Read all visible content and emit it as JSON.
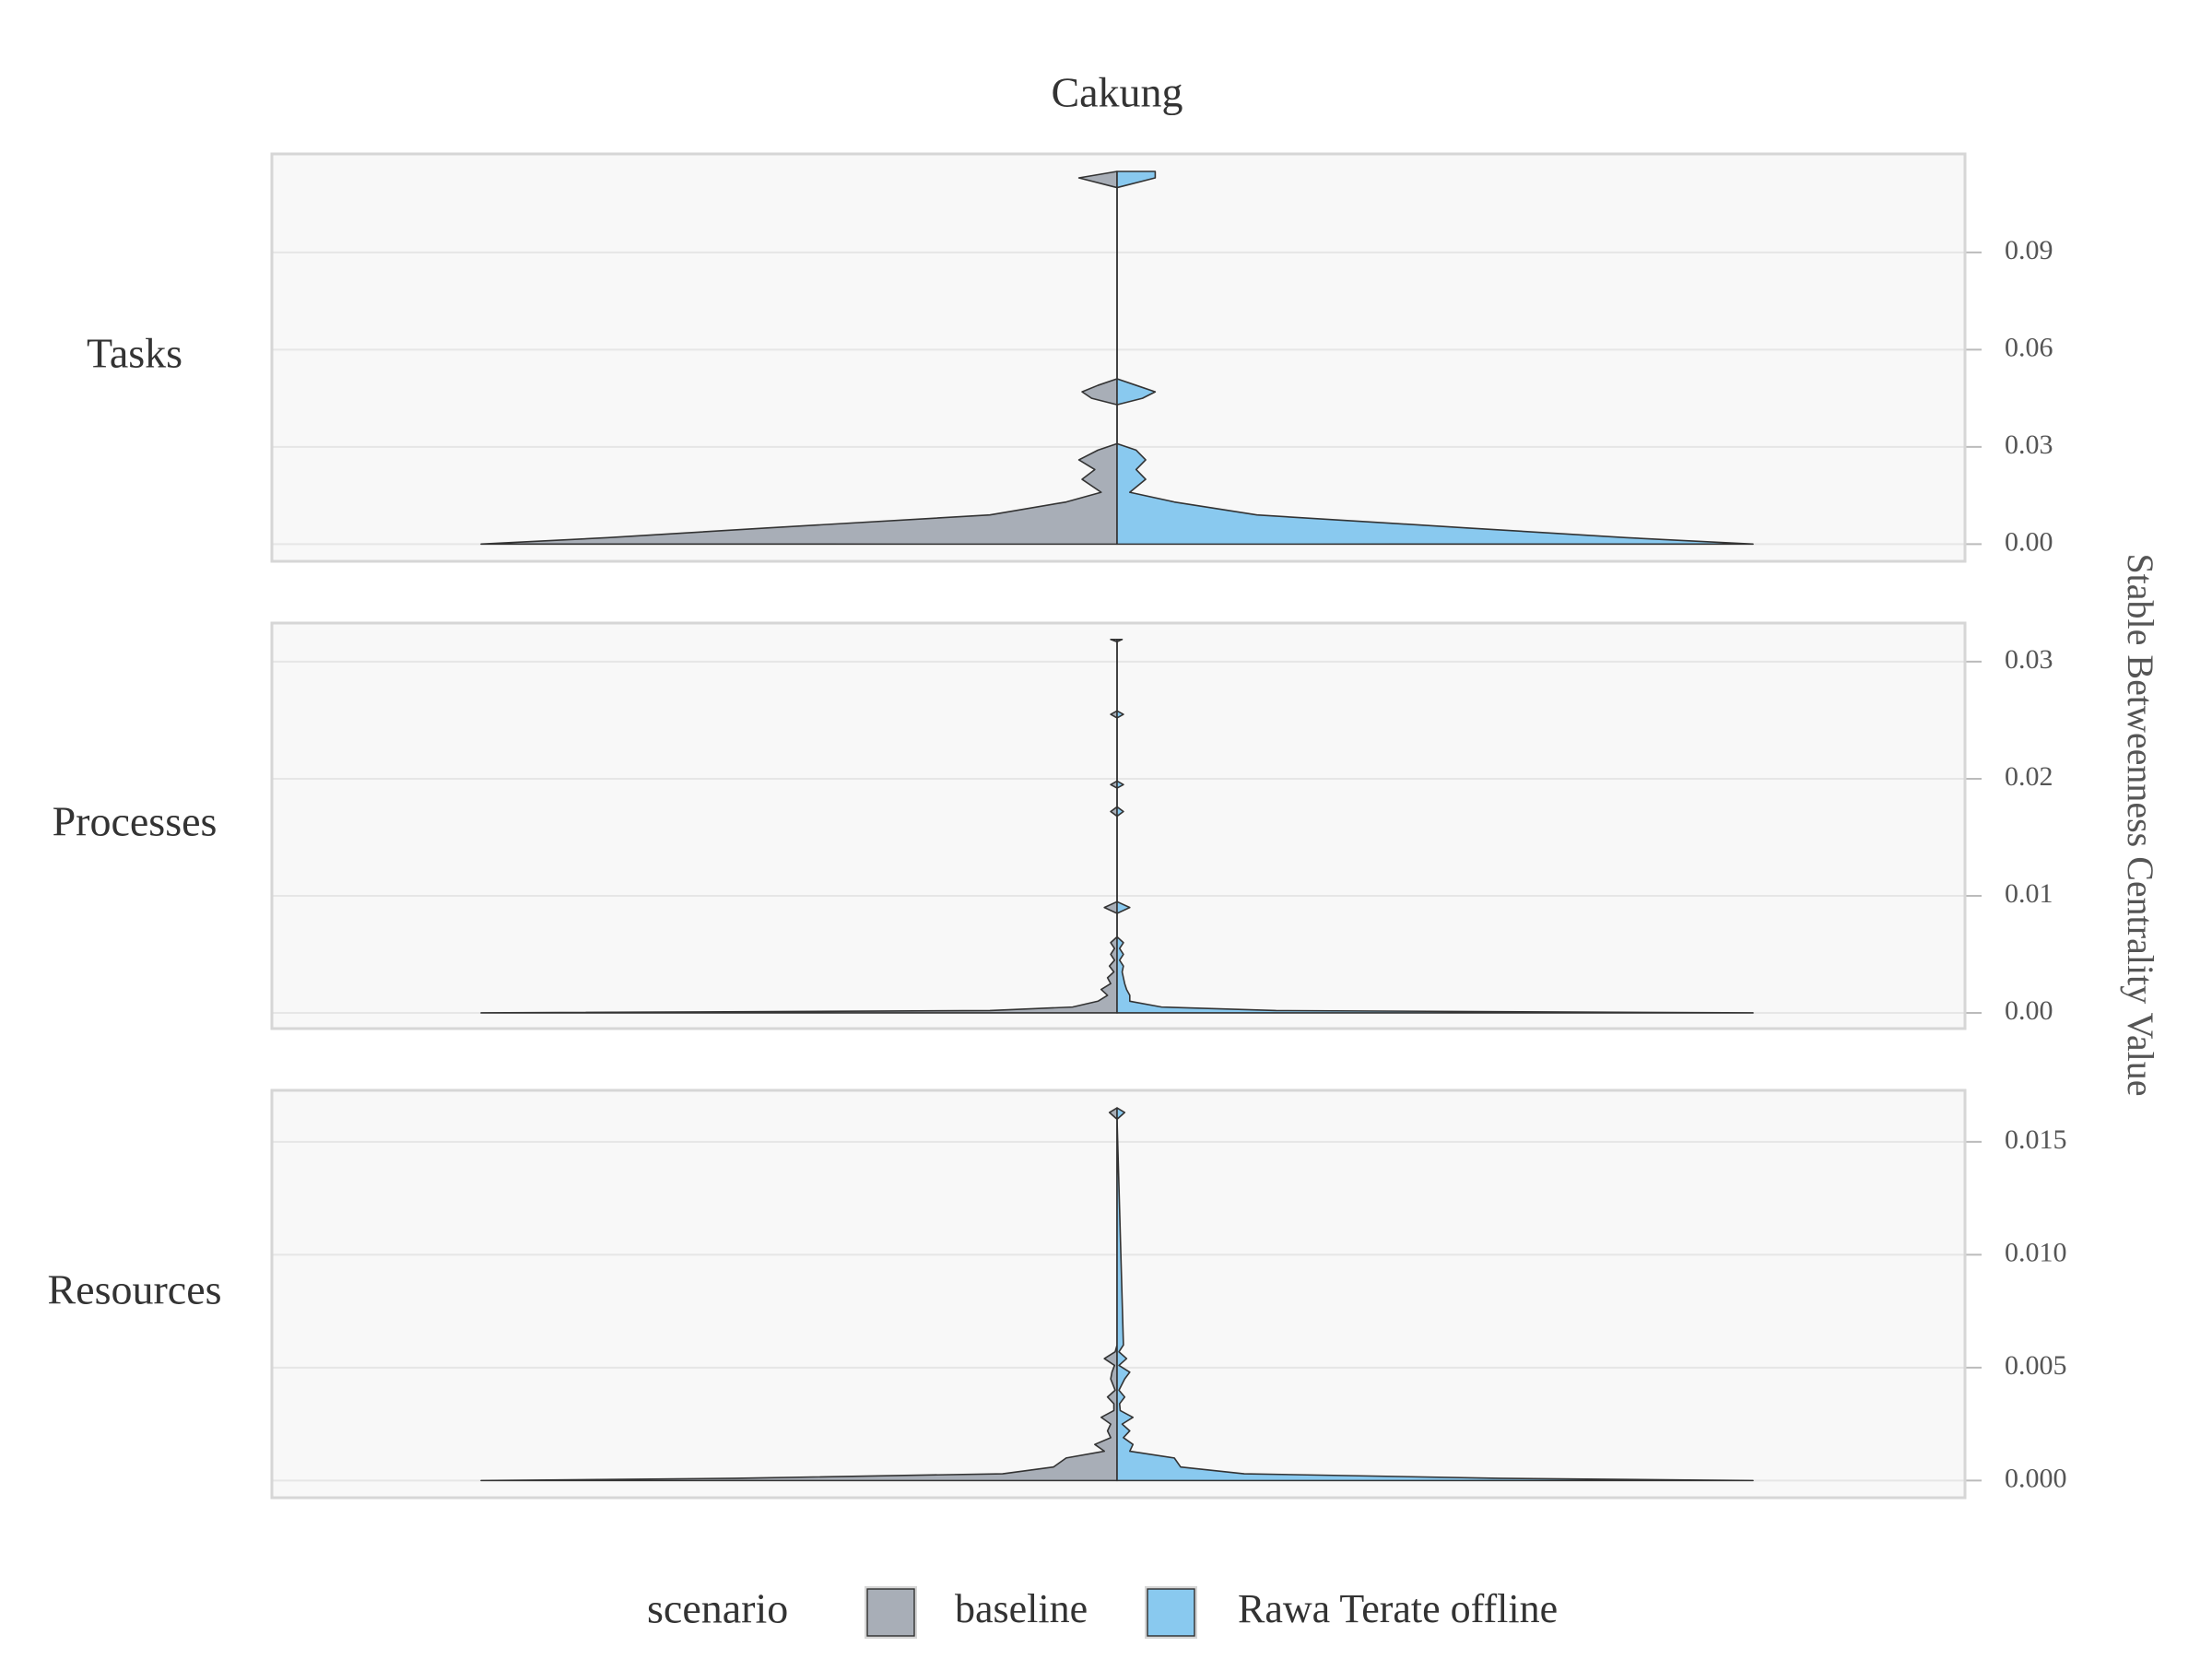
{
  "chart_data": {
    "type": "violin",
    "title": "Cakung",
    "y_label": "Stable Betweenness Centrality Value",
    "legend_title": "scenario",
    "series": [
      {
        "name": "baseline",
        "color": "#a8aeb7"
      },
      {
        "name": "Rawa Terate offline",
        "color": "#89c9ef"
      }
    ],
    "facets": [
      {
        "label": "Tasks",
        "ylim": [
          -0.0053,
          0.1204
        ],
        "yticks": [
          {
            "value": 0,
            "label": "0.00"
          },
          0.03,
          0.06,
          0.09
        ],
        "y": [
          0,
          0.002,
          0.005,
          0.009,
          0.013,
          0.016,
          0.02,
          0.023,
          0.026,
          0.029,
          0.031,
          0.043,
          0.045,
          0.047,
          0.049,
          0.051,
          0.11,
          0.113,
          0.115
        ],
        "density": [
          [
            1.0,
            0.8,
            0.55,
            0.2,
            0.08,
            0.025,
            0.055,
            0.035,
            0.06,
            0.03,
            0,
            0,
            0.04,
            0.055,
            0.03,
            0,
            0,
            0.06,
            0
          ],
          [
            1.0,
            0.8,
            0.55,
            0.22,
            0.09,
            0.02,
            0.045,
            0.03,
            0.045,
            0.03,
            0,
            0,
            0.04,
            0.06,
            0.03,
            0,
            0,
            0.06,
            0.06
          ]
        ]
      },
      {
        "label": "Processes",
        "ylim": [
          -0.00134,
          0.0333
        ],
        "yticks": [
          {
            "value": 0,
            "label": "0.00"
          },
          0.01,
          0.02,
          0.03
        ],
        "y": [
          0,
          0.0002,
          0.0005,
          0.001,
          0.0015,
          0.002,
          0.0025,
          0.003,
          0.0035,
          0.004,
          0.0045,
          0.005,
          0.0055,
          0.006,
          0.0065,
          0.0085,
          0.009,
          0.0095,
          0.0168,
          0.0172,
          0.0176,
          0.0192,
          0.0195,
          0.0198,
          0.0252,
          0.0255,
          0.0258,
          0.0317,
          0.0319
        ],
        "density": [
          [
            1.0,
            0.2,
            0.07,
            0.03,
            0.015,
            0.025,
            0.01,
            0.015,
            0.005,
            0.012,
            0.004,
            0.01,
            0.004,
            0.01,
            0,
            0,
            0.02,
            0,
            0,
            0.01,
            0,
            0,
            0.01,
            0,
            0,
            0.01,
            0,
            0,
            0.01
          ],
          [
            1.0,
            0.25,
            0.07,
            0.02,
            0.02,
            0.015,
            0.012,
            0.01,
            0.008,
            0.01,
            0.004,
            0.01,
            0.004,
            0.01,
            0,
            0,
            0.02,
            0,
            0,
            0.01,
            0,
            0,
            0.01,
            0,
            0,
            0.01,
            0,
            0,
            0.008
          ]
        ]
      },
      {
        "label": "Resources",
        "ylim": [
          -0.00076,
          0.01728
        ],
        "yticks": [
          {
            "value": 0,
            "label": "0.000"
          },
          0.005,
          {
            "value": 0.01,
            "label": "0.010"
          },
          0.015
        ],
        "y": [
          0,
          0.0001,
          0.0003,
          0.0006,
          0.001,
          0.0013,
          0.0016,
          0.0019,
          0.0022,
          0.0025,
          0.0028,
          0.0031,
          0.0034,
          0.0037,
          0.004,
          0.0045,
          0.0048,
          0.0051,
          0.0054,
          0.0057,
          0.006,
          0.016,
          0.0163,
          0.0165
        ],
        "density": [
          [
            1.0,
            0.6,
            0.18,
            0.1,
            0.08,
            0.02,
            0.035,
            0.01,
            0.015,
            0.01,
            0.025,
            0.005,
            0.005,
            0.015,
            0.003,
            0.01,
            0.008,
            0.004,
            0.02,
            0.003,
            0,
            0,
            0.012,
            0
          ],
          [
            1.0,
            0.6,
            0.2,
            0.1,
            0.09,
            0.02,
            0.025,
            0.01,
            0.02,
            0.008,
            0.025,
            0.005,
            0.004,
            0.012,
            0.003,
            0.012,
            0.02,
            0.003,
            0.015,
            0.003,
            0.01,
            0,
            0.012,
            0
          ]
        ]
      }
    ]
  }
}
